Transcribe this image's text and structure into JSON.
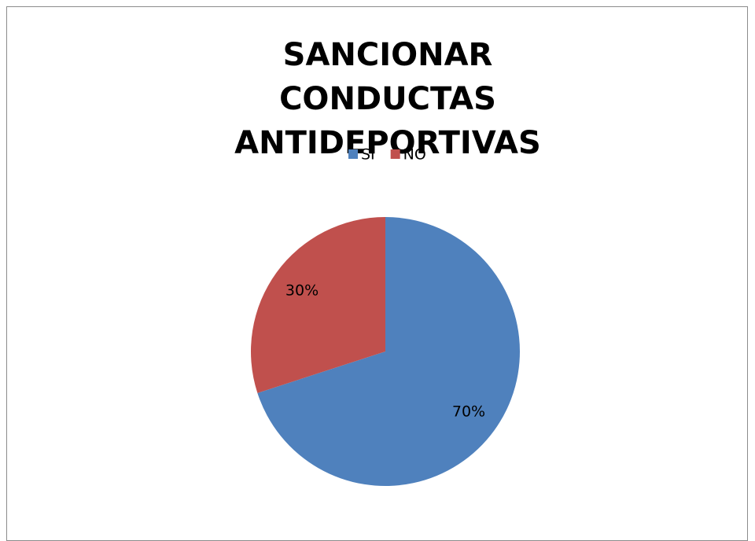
{
  "chart_data": {
    "type": "pie",
    "title": "SANCIONAR CONDUCTAS ANTIDEPORTIVAS",
    "categories": [
      "SI",
      "NO"
    ],
    "values": [
      70,
      30
    ],
    "value_labels": [
      "70%",
      "30%"
    ],
    "colors": [
      "#4f81bd",
      "#c0504d"
    ],
    "legend": "top"
  }
}
